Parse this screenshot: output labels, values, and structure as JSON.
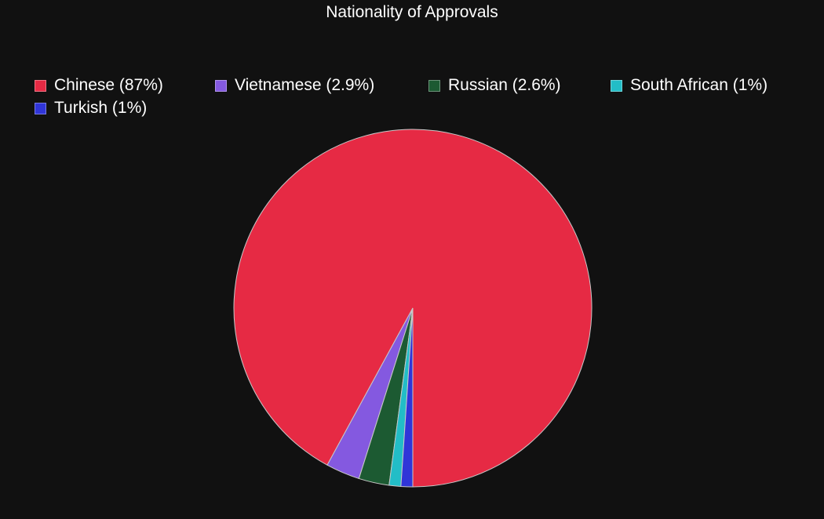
{
  "chart_data": {
    "type": "pie",
    "title": "Nationality of Approvals",
    "legend_position": "top",
    "start": "bottom, clockwise",
    "slices": [
      {
        "label": "Chinese",
        "legend_text": "Chinese (87%)",
        "value": 87,
        "color": "#e62a44"
      },
      {
        "label": "Vietnamese",
        "legend_text": "Vietnamese (2.9%)",
        "value": 2.9,
        "color": "#8459e0"
      },
      {
        "label": "Russian",
        "legend_text": "Russian (2.6%)",
        "value": 2.6,
        "color": "#1c5a32"
      },
      {
        "label": "South African",
        "legend_text": "South African (1%)",
        "value": 1,
        "color": "#22bdc7"
      },
      {
        "label": "Turkish",
        "legend_text": "Turkish (1%)",
        "value": 1,
        "color": "#3035d8"
      }
    ]
  }
}
